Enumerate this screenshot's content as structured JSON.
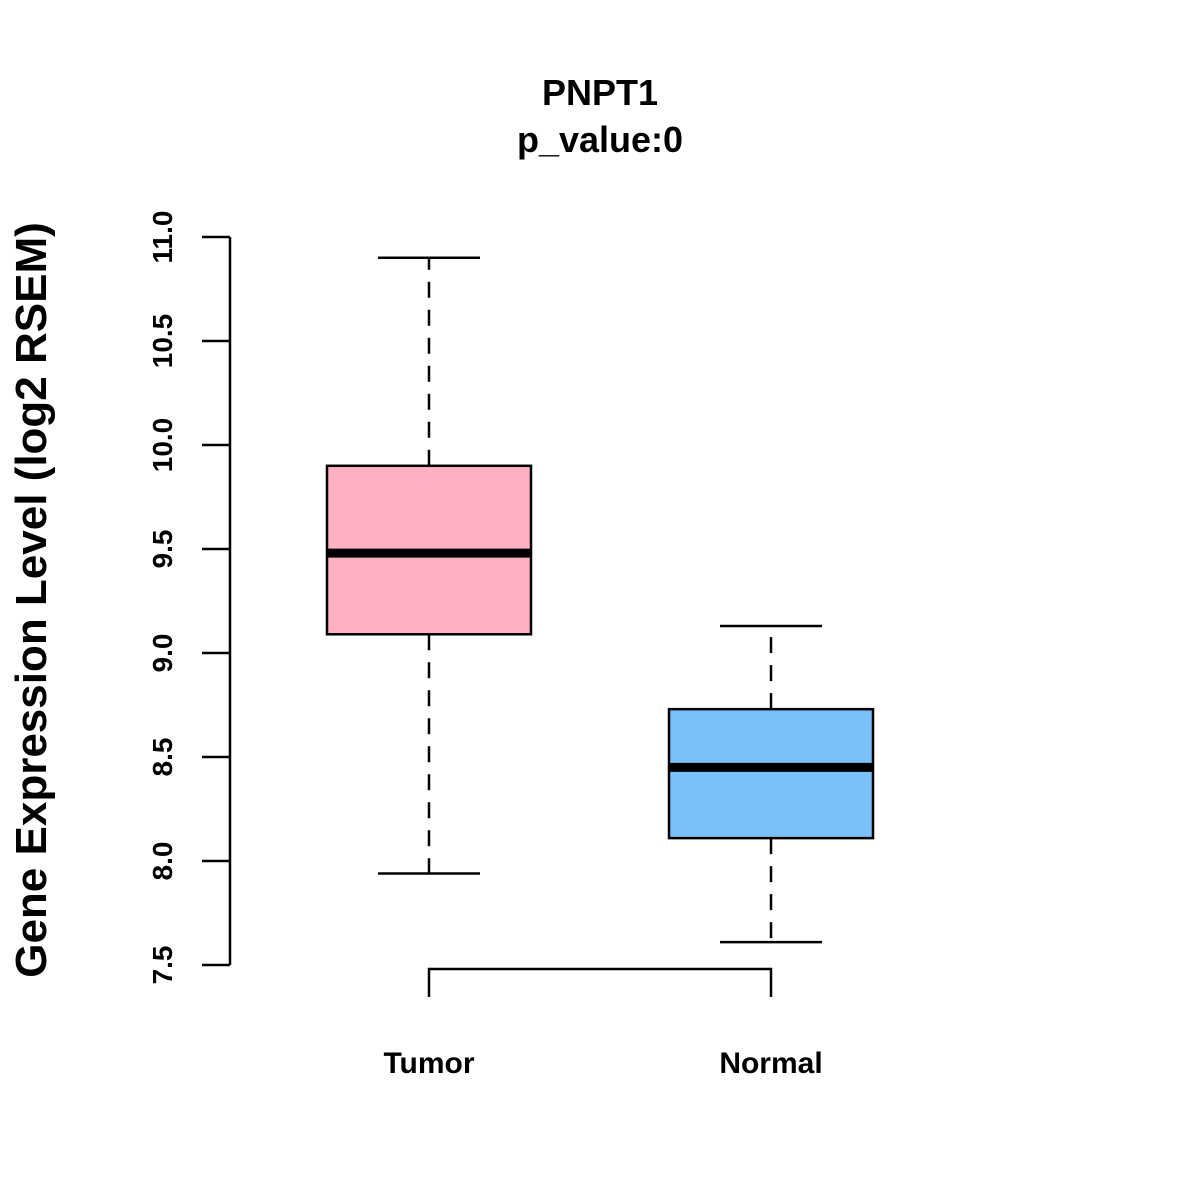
{
  "chart_data": {
    "type": "boxplot",
    "title": "PNPT1",
    "subtitle": "p_value:0",
    "xlabel": "",
    "ylabel": "Gene Expression Level (log2 RSEM)",
    "ylim": [
      7.5,
      11.0
    ],
    "yticks": [
      7.5,
      8.0,
      8.5,
      9.0,
      9.5,
      10.0,
      10.5,
      11.0
    ],
    "ytick_labels": [
      "7.5",
      "8.0",
      "8.5",
      "9.0",
      "9.5",
      "10.0",
      "10.5",
      "11.0"
    ],
    "categories": [
      "Tumor",
      "Normal"
    ],
    "series": [
      {
        "name": "Tumor",
        "whisker_low": 7.94,
        "q1": 9.09,
        "median": 9.48,
        "q3": 9.9,
        "whisker_high": 10.9,
        "color": "#FFB1C3"
      },
      {
        "name": "Normal",
        "whisker_low": 7.61,
        "q1": 8.11,
        "median": 8.45,
        "q3": 8.73,
        "whisker_high": 9.13,
        "color": "#7AC1FA"
      }
    ],
    "grid": false,
    "significance_bracket": true
  }
}
